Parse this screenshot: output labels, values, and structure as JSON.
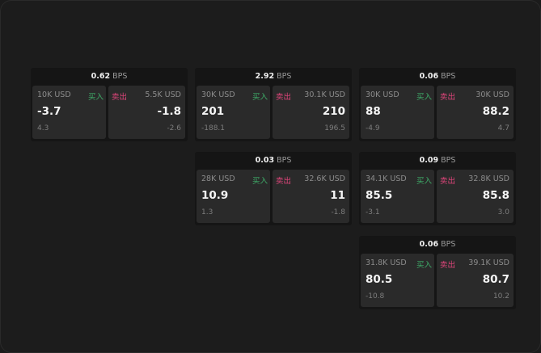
{
  "labels": {
    "buy": "买入",
    "sell": "卖出",
    "unit": "BPS"
  },
  "colors": {
    "buy": "#3fae6a",
    "sell": "#e0457b"
  },
  "widgets": [
    {
      "spread": "0.62",
      "buy": {
        "size": "10K USD",
        "price": "-3.7",
        "change": "4.3"
      },
      "sell": {
        "size": "5.5K USD",
        "price": "-1.8",
        "change": "-2.6"
      }
    },
    {
      "spread": "2.92",
      "buy": {
        "size": "30K USD",
        "price": "201",
        "change": "-188.1"
      },
      "sell": {
        "size": "30.1K USD",
        "price": "210",
        "change": "196.5"
      }
    },
    {
      "spread": "0.06",
      "buy": {
        "size": "30K USD",
        "price": "88",
        "change": "-4.9"
      },
      "sell": {
        "size": "30K USD",
        "price": "88.2",
        "change": "4.7"
      }
    },
    {
      "spread": "0.03",
      "buy": {
        "size": "28K USD",
        "price": "10.9",
        "change": "1.3"
      },
      "sell": {
        "size": "32.6K USD",
        "price": "11",
        "change": "-1.8"
      }
    },
    {
      "spread": "0.09",
      "buy": {
        "size": "34.1K USD",
        "price": "85.5",
        "change": "-3.1"
      },
      "sell": {
        "size": "32.8K USD",
        "price": "85.8",
        "change": "3.0"
      }
    },
    {
      "spread": "0.06",
      "buy": {
        "size": "31.8K USD",
        "price": "80.5",
        "change": "-10.8"
      },
      "sell": {
        "size": "39.1K USD",
        "price": "80.7",
        "change": "10.2"
      }
    }
  ]
}
